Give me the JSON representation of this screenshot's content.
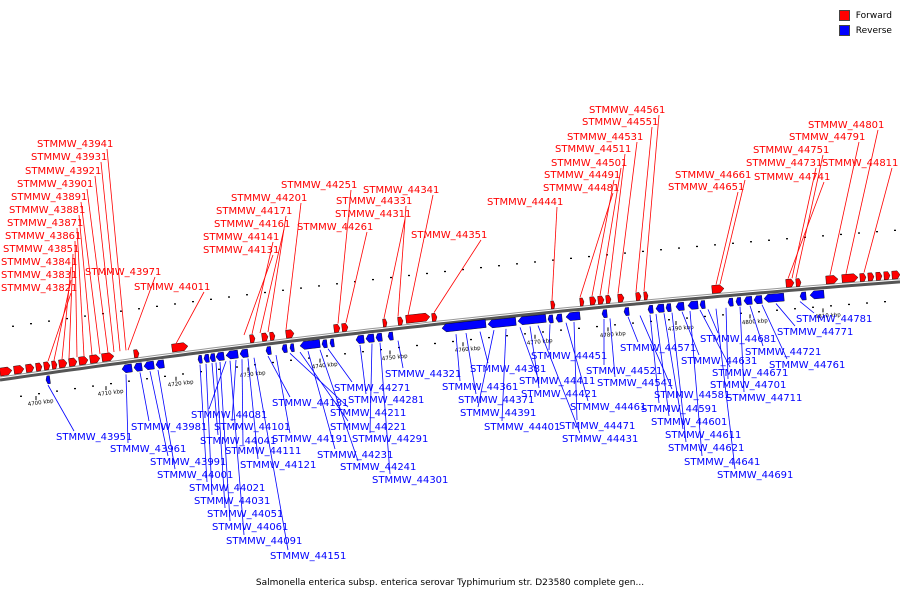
{
  "legend": {
    "forward_label": "Forward",
    "reverse_label": "Reverse",
    "forward_color": "#ff0000",
    "reverse_color": "#0000ff"
  },
  "caption": "Salmonella enterica subsp. enterica serovar Typhimurium str. D23580 complete gen...",
  "scale_ticks": [
    "4700 kbp",
    "4710 kbp",
    "4720 kbp",
    "4730 kbp",
    "4740 kbp",
    "4750 kbp",
    "4760 kbp",
    "4770 kbp",
    "4780 kbp",
    "4790 kbp",
    "4800 kbp",
    "4810 kbp"
  ],
  "forward_labels": [
    "STMMW_43821",
    "STMMW_43831",
    "STMMW_43841",
    "STMMW_43851",
    "STMMW_43861",
    "STMMW_43871",
    "STMMW_43881",
    "STMMW_43891",
    "STMMW_43901",
    "STMMW_43921",
    "STMMW_43931",
    "STMMW_43941",
    "STMMW_43971",
    "STMMW_44011",
    "STMMW_44131",
    "STMMW_44141",
    "STMMW_44161",
    "STMMW_44171",
    "STMMW_44201",
    "STMMW_44251",
    "STMMW_44261",
    "STMMW_44311",
    "STMMW_44331",
    "STMMW_44341",
    "STMMW_44351",
    "STMMW_44441",
    "STMMW_44481",
    "STMMW_44491",
    "STMMW_44501",
    "STMMW_44511",
    "STMMW_44531",
    "STMMW_44551",
    "STMMW_44561",
    "STMMW_44651",
    "STMMW_44661",
    "STMMW_44741",
    "STMMW_44731",
    "STMMW_44751",
    "STMMW_44791",
    "STMMW_44801",
    "STMMW_44811"
  ],
  "reverse_labels": [
    "STMMW_43951",
    "STMMW_43961",
    "STMMW_43981",
    "STMMW_43991",
    "STMMW_44001",
    "STMMW_44021",
    "STMMW_44031",
    "STMMW_44041",
    "STMMW_44051",
    "STMMW_44061",
    "STMMW_44081",
    "STMMW_44091",
    "STMMW_44101",
    "STMMW_44111",
    "STMMW_44121",
    "STMMW_44151",
    "STMMW_44181",
    "STMMW_44191",
    "STMMW_44211",
    "STMMW_44221",
    "STMMW_44231",
    "STMMW_44241",
    "STMMW_44271",
    "STMMW_44281",
    "STMMW_44291",
    "STMMW_44301",
    "STMMW_44321",
    "STMMW_44361",
    "STMMW_44371",
    "STMMW_44381",
    "STMMW_44391",
    "STMMW_44401",
    "STMMW_44411",
    "STMMW_44421",
    "STMMW_44431",
    "STMMW_44451",
    "STMMW_44461",
    "STMMW_44471",
    "STMMW_44521",
    "STMMW_44541",
    "STMMW_44571",
    "STMMW_44581",
    "STMMW_44591",
    "STMMW_44601",
    "STMMW_44611",
    "STMMW_44621",
    "STMMW_44631",
    "STMMW_44641",
    "STMMW_44671",
    "STMMW_44681",
    "STMMW_44691",
    "STMMW_44701",
    "STMMW_44711",
    "STMMW_44721",
    "STMMW_44761",
    "STMMW_44771",
    "STMMW_44781"
  ]
}
